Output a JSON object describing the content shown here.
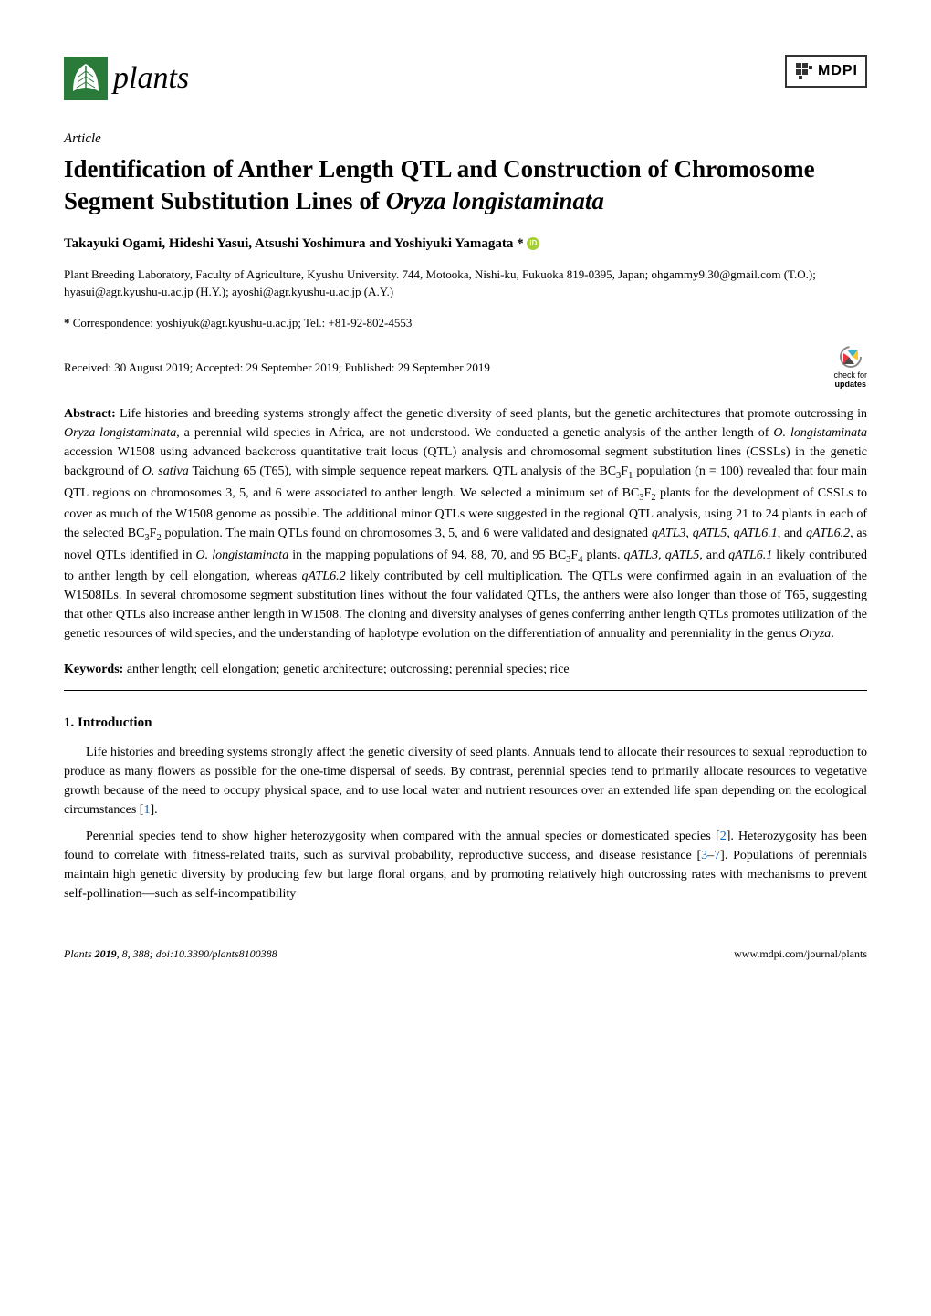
{
  "journal": {
    "name": "plants",
    "logo_color": "#2a7a3a",
    "publisher": "MDPI"
  },
  "article": {
    "type": "Article",
    "title_html": "Identification of Anther Length QTL and Construction of Chromosome Segment Substitution Lines of <span class=\"italic\">Oryza longistaminata</span>",
    "authors_html": "Takayuki Ogami, Hideshi Yasui, Atsushi Yoshimura and Yoshiyuki Yamagata *",
    "affiliation": "Plant Breeding Laboratory, Faculty of Agriculture, Kyushu University. 744, Motooka, Nishi-ku, Fukuoka 819-0395, Japan; ohgammy9.30@gmail.com (T.O.); hyasui@agr.kyushu-u.ac.jp (H.Y.); ayoshi@agr.kyushu-u.ac.jp (A.Y.)",
    "correspondence": "Correspondence: yoshiyuk@agr.kyushu-u.ac.jp; Tel.: +81-92-802-4553",
    "dates": "Received: 30 August 2019; Accepted: 29 September 2019; Published: 29 September 2019",
    "check_updates": {
      "line1": "check for",
      "line2": "updates"
    },
    "abstract_label": "Abstract:",
    "abstract_html": "Life histories and breeding systems strongly affect the genetic diversity of seed plants, but the genetic architectures that promote outcrossing in <span class=\"italic\">Oryza longistaminata</span>, a perennial wild species in Africa, are not understood. We conducted a genetic analysis of the anther length of <span class=\"italic\">O. longistaminata</span> accession W1508 using advanced backcross quantitative trait locus (QTL) analysis and chromosomal segment substitution lines (CSSLs) in the genetic background of <span class=\"italic\">O. sativa</span> Taichung 65 (T65), with simple sequence repeat markers. QTL analysis of the BC<span class=\"sub\">3</span>F<span class=\"sub\">1</span> population (n = 100) revealed that four main QTL regions on chromosomes 3, 5, and 6 were associated to anther length. We selected a minimum set of BC<span class=\"sub\">3</span>F<span class=\"sub\">2</span> plants for the development of CSSLs to cover as much of the W1508 genome as possible. The additional minor QTLs were suggested in the regional QTL analysis, using 21 to 24 plants in each of the selected BC<span class=\"sub\">3</span>F<span class=\"sub\">2</span> population. The main QTLs found on chromosomes 3, 5, and 6 were validated and designated <span class=\"italic\">qATL3</span>, <span class=\"italic\">qATL5</span>, <span class=\"italic\">qATL6.1</span>, and <span class=\"italic\">qATL6.2</span>, as novel QTLs identified in <span class=\"italic\">O. longistaminata</span> in the mapping populations of 94, 88, 70, and 95 BC<span class=\"sub\">3</span>F<span class=\"sub\">4</span> plants. <span class=\"italic\">qATL3</span>, <span class=\"italic\">qATL5</span>, and <span class=\"italic\">qATL6.1</span> likely contributed to anther length by cell elongation, whereas <span class=\"italic\">qATL6.2</span> likely contributed by cell multiplication. The QTLs were confirmed again in an evaluation of the W1508ILs. In several chromosome segment substitution lines without the four validated QTLs, the anthers were also longer than those of T65, suggesting that other QTLs also increase anther length in W1508. The cloning and diversity analyses of genes conferring anther length QTLs promotes utilization of the genetic resources of wild species, and the understanding of haplotype evolution on the differentiation of annuality and perenniality in the genus <span class=\"italic\">Oryza</span>.",
    "keywords_label": "Keywords:",
    "keywords": "anther length; cell elongation; genetic architecture; outcrossing; perennial species; rice"
  },
  "section": {
    "heading": "1. Introduction",
    "paragraphs_html": [
      "Life histories and breeding systems strongly affect the genetic diversity of seed plants. Annuals tend to allocate their resources to sexual reproduction to produce as many flowers as possible for the one-time dispersal of seeds. By contrast, perennial species tend to primarily allocate resources to vegetative growth because of the need to occupy physical space, and to use local water and nutrient resources over an extended life span depending on the ecological circumstances [<span class=\"citation-link\">1</span>].",
      "Perennial species tend to show higher heterozygosity when compared with the annual species or domesticated species [<span class=\"citation-link\">2</span>]. Heterozygosity has been found to correlate with fitness-related traits, such as survival probability, reproductive success, and disease resistance [<span class=\"citation-link\">3</span>–<span class=\"citation-link\">7</span>]. Populations of perennials maintain high genetic diversity by producing few but large floral organs, and by promoting relatively high outcrossing rates with mechanisms to prevent self-pollination—such as self-incompatibility"
    ]
  },
  "footer": {
    "left_html": "<span class=\"italic\">Plants</span> <b>2019</b>, <span class=\"italic\">8</span>, 388; doi:10.3390/plants8100388",
    "right": "www.mdpi.com/journal/plants"
  },
  "colors": {
    "link": "#0066cc",
    "orcid": "#a6ce39",
    "leaf": "#2a7a3a",
    "crossref_blue": "#3eb1c8",
    "crossref_yellow": "#ffc72c",
    "crossref_red": "#ef3340",
    "text": "#000000",
    "background": "#ffffff"
  },
  "typography": {
    "body_font": "Palatino Linotype",
    "title_size_pt": 20,
    "body_size_pt": 10.5,
    "journal_name_size_pt": 26
  }
}
